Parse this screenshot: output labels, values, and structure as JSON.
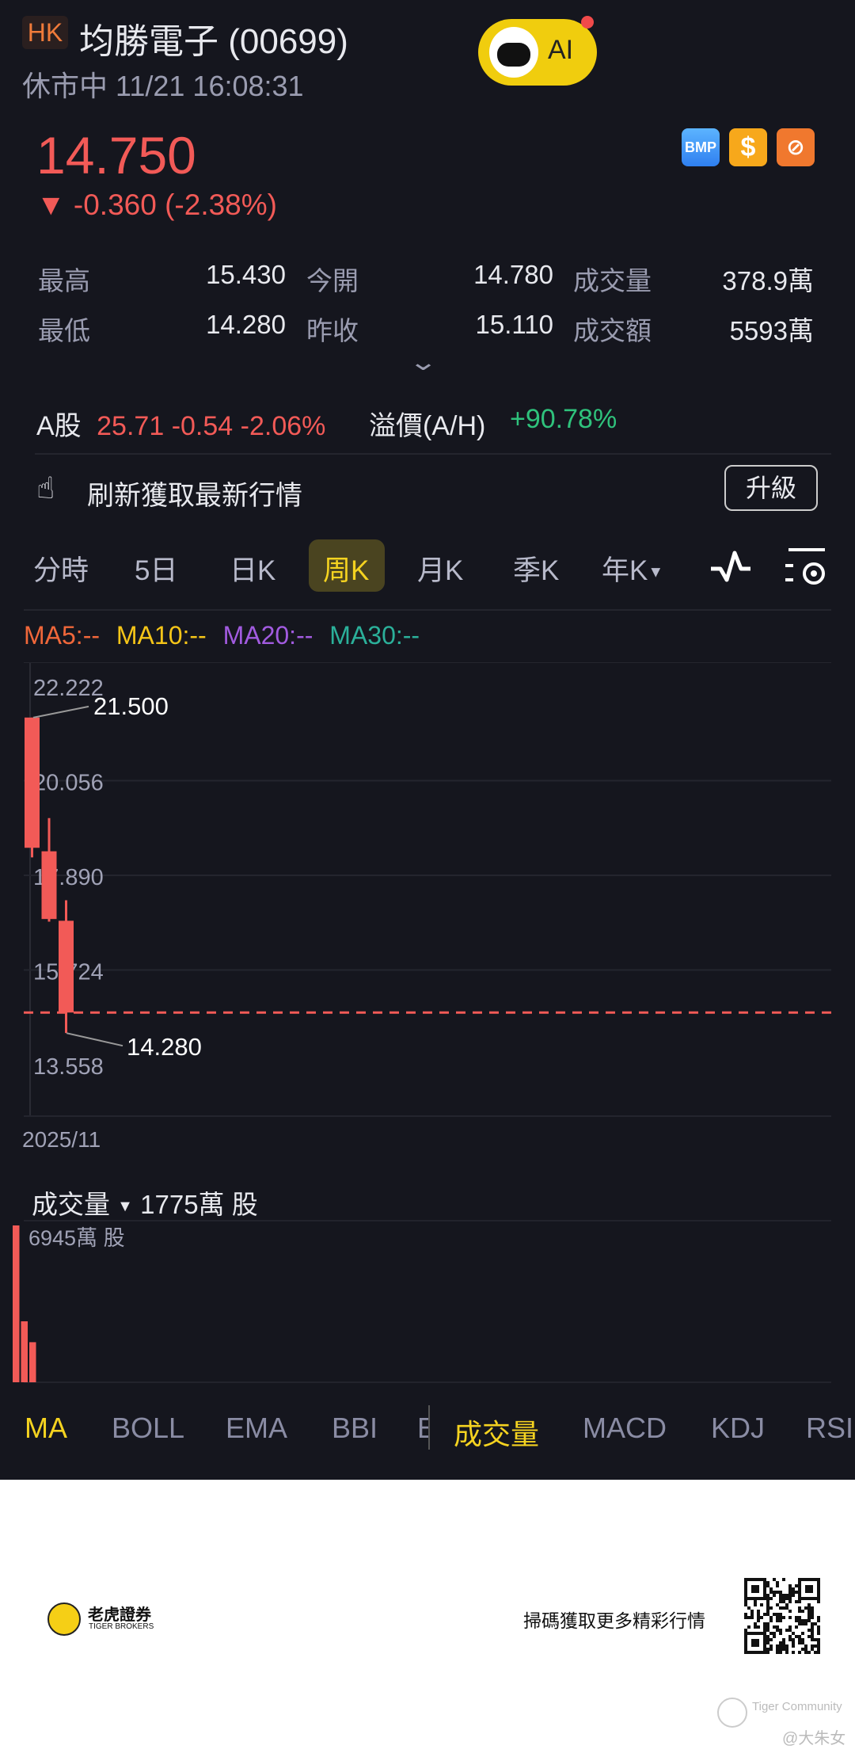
{
  "header": {
    "market": "HK",
    "name": "均勝電子 (00699)",
    "status": "休市中 11/21 16:08:31",
    "ai_label": "AI"
  },
  "quote": {
    "price": "14.750",
    "change": "-0.360 (-2.38%)",
    "direction": "down"
  },
  "badges": [
    "BMP",
    "$",
    "exchange-icon"
  ],
  "stats": [
    {
      "label": "最高",
      "value": "15.430"
    },
    {
      "label": "今開",
      "value": "14.780"
    },
    {
      "label": "成交量",
      "value": "378.9萬"
    },
    {
      "label": "最低",
      "value": "14.280"
    },
    {
      "label": "昨收",
      "value": "15.110"
    },
    {
      "label": "成交額",
      "value": "5593萬"
    }
  ],
  "ashare": {
    "label": "A股",
    "price": "25.71",
    "change": "-0.54",
    "pct": "-2.06%",
    "premium_label": "溢價(A/H)",
    "premium": "+90.78%"
  },
  "refresh": {
    "text": "刷新獲取最新行情",
    "button": "升級"
  },
  "period_tabs": [
    "分時",
    "5日",
    "日K",
    "周K",
    "月K",
    "季K",
    "年K"
  ],
  "active_period": "周K",
  "ma_legend": [
    {
      "label": "MA5:--",
      "color": "#f0673a"
    },
    {
      "label": "MA10:--",
      "color": "#f5c518"
    },
    {
      "label": "MA20:--",
      "color": "#a25be0"
    },
    {
      "label": "MA30:--",
      "color": "#2bb09a"
    }
  ],
  "chart_data": {
    "type": "candlestick",
    "y_ticks": [
      "22.222",
      "20.056",
      "17.890",
      "15.724",
      "13.558"
    ],
    "ylim": [
      13.558,
      22.222
    ],
    "x_label": "2025/11",
    "candles": [
      {
        "open": 21.5,
        "high": 21.5,
        "low": 18.3,
        "close": 18.52
      },
      {
        "open": 18.44,
        "high": 19.2,
        "low": 16.83,
        "close": 16.89
      },
      {
        "open": 16.85,
        "high": 17.32,
        "low": 14.28,
        "close": 14.75
      }
    ],
    "max_label": "21.500",
    "min_label": "14.280",
    "last_price": 14.75,
    "color_down": "#f25a57"
  },
  "volume": {
    "label": "成交量",
    "current": "1775萬 股",
    "max_label": "6945萬 股",
    "values": [
      6945,
      2700,
      1775
    ],
    "max": 6945
  },
  "indicators": {
    "main": [
      "MA",
      "BOLL",
      "EMA",
      "BBI",
      "E"
    ],
    "sub": [
      "成交量",
      "MACD",
      "KDJ",
      "RSI"
    ],
    "active_main": "MA",
    "active_sub": "成交量"
  },
  "footer": {
    "brand_cn": "老虎證券",
    "brand_en": "TIGER BROKERS",
    "cta": "掃碼獲取更多精彩行情",
    "watermark": "Tiger Community",
    "author": "@大朱女"
  }
}
